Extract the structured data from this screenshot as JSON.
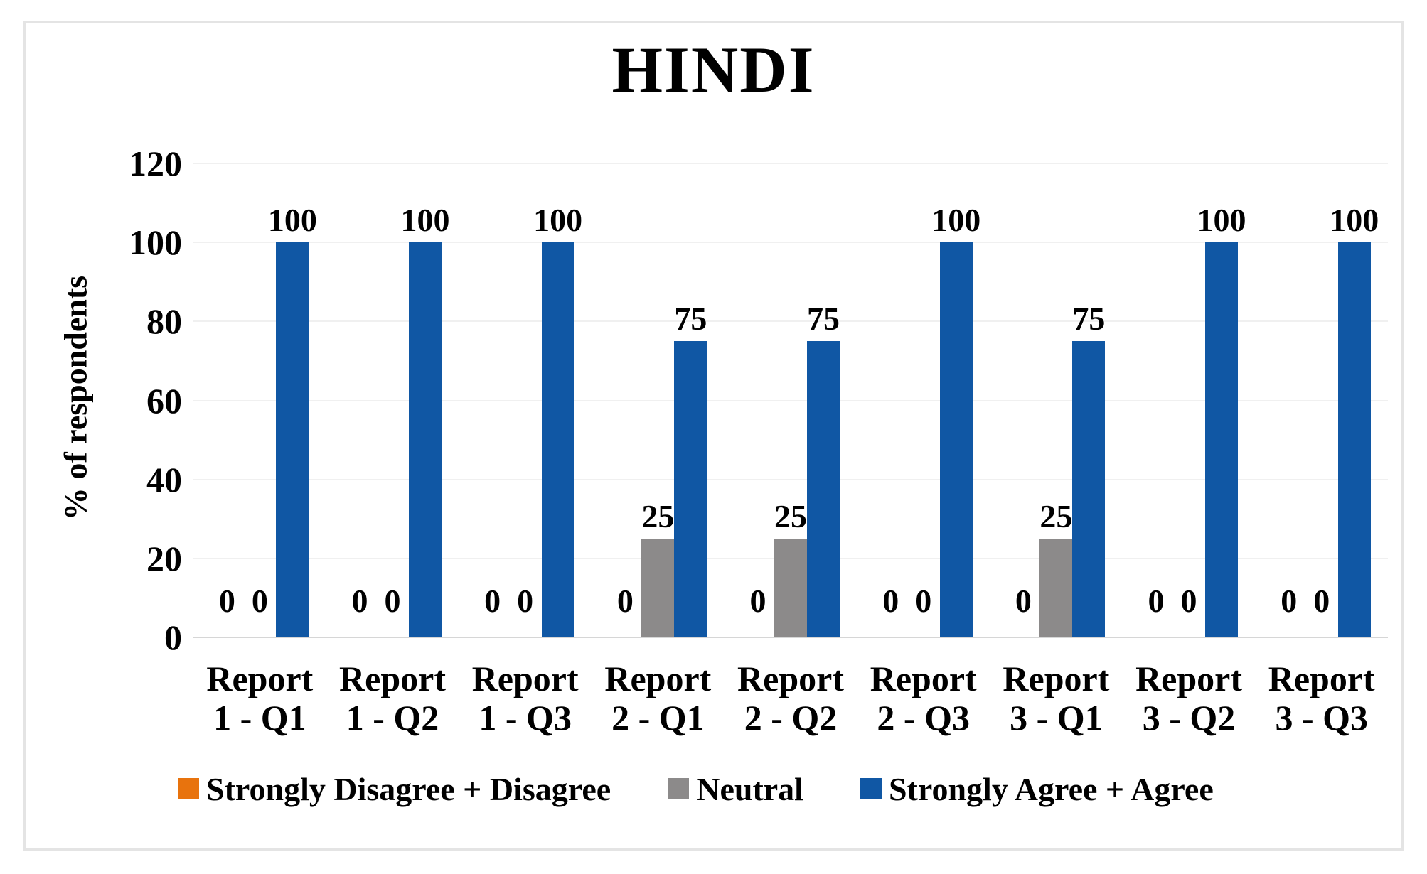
{
  "figure": {
    "background": "#FFFFFF",
    "border_color": "#E4E4E4"
  },
  "chart_data": {
    "type": "bar",
    "title": "HINDI",
    "xlabel": "",
    "ylabel": "% of respondents",
    "ylim": [
      0,
      120
    ],
    "yticks": [
      0,
      20,
      40,
      60,
      80,
      100,
      120
    ],
    "grid": true,
    "data_labels": true,
    "legend_position": "bottom",
    "categories": [
      "Report 1 - Q1",
      "Report 1 - Q2",
      "Report 1 - Q3",
      "Report 2 - Q1",
      "Report 2 - Q2",
      "Report 2 - Q3",
      "Report 3 - Q1",
      "Report 3 - Q2",
      "Report 3 - Q3"
    ],
    "series": [
      {
        "name": "Strongly Disagree + Disagree",
        "color": "#E8730D",
        "values": [
          0,
          0,
          0,
          0,
          0,
          0,
          0,
          0,
          0
        ]
      },
      {
        "name": "Neutral",
        "color": "#8C8A8A",
        "values": [
          0,
          0,
          0,
          25,
          25,
          0,
          25,
          0,
          0
        ]
      },
      {
        "name": "Strongly Agree + Agree",
        "color": "#1057A4",
        "values": [
          100,
          100,
          100,
          75,
          75,
          100,
          75,
          100,
          100
        ]
      }
    ]
  }
}
